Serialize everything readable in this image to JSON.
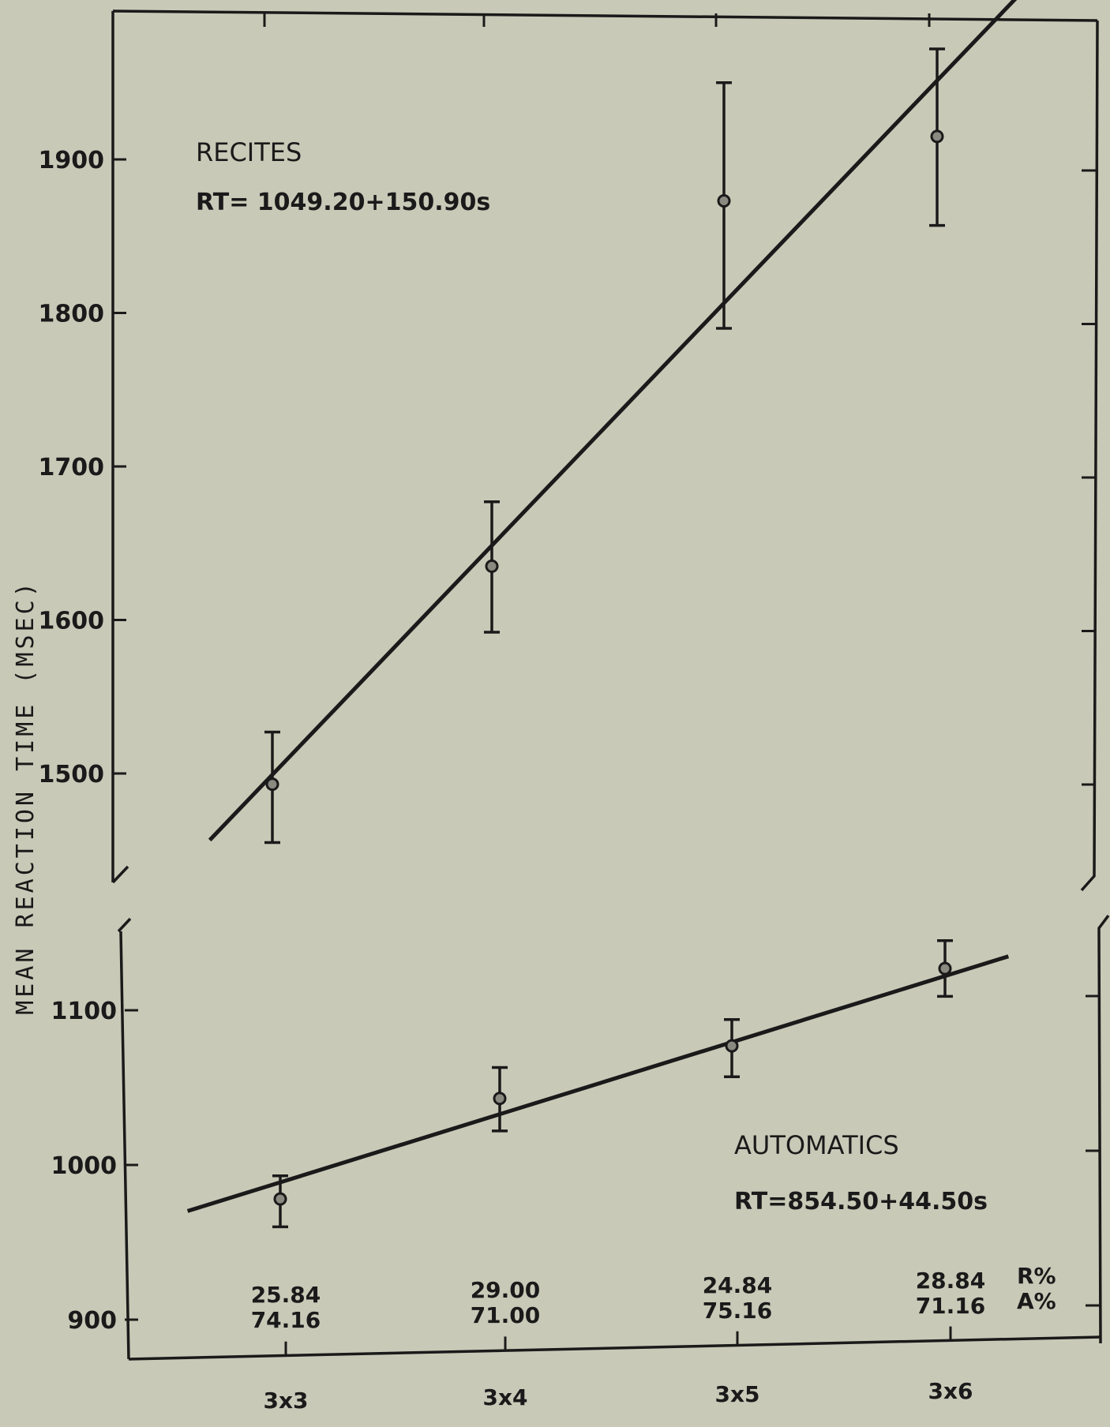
{
  "chart_data": {
    "type": "scatter",
    "ylabel": "MEAN  REACTION  TIME  (MSEC)",
    "categories": [
      "3x3",
      "3x4",
      "3x5",
      "3x6"
    ],
    "x": [
      3,
      4,
      5,
      6
    ],
    "y_ticks_upper": [
      "1500",
      "1600",
      "1700",
      "1800",
      "1900"
    ],
    "y_ticks_lower": [
      "900",
      "1000",
      "1100"
    ],
    "ylim_upper": [
      1440,
      1995
    ],
    "ylim_lower": [
      900,
      1150
    ],
    "broken_y_axis": true,
    "grid": false,
    "series": [
      {
        "name": "RECITES",
        "equation": "RT= 1049.20+150.90s",
        "intercept": 1049.2,
        "slope": 150.9,
        "values": [
          1493,
          1635,
          1873,
          1915
        ],
        "err_high": [
          1527,
          1677,
          1950,
          1972
        ],
        "err_low": [
          1455,
          1592,
          1790,
          1857
        ]
      },
      {
        "name": "AUTOMATICS",
        "equation": "RT=854.50+44.50s",
        "intercept": 854.5,
        "slope": 44.5,
        "values": [
          978,
          1043,
          1077,
          1127
        ],
        "err_high": [
          993,
          1063,
          1094,
          1145
        ],
        "err_low": [
          960,
          1022,
          1057,
          1109
        ]
      }
    ],
    "percent_rows": [
      {
        "label": "R%",
        "values": [
          "25.84",
          "29.00",
          "24.84",
          "28.84"
        ]
      },
      {
        "label": "A%",
        "values": [
          "74.16",
          "71.00",
          "75.16",
          "71.16"
        ]
      }
    ]
  }
}
